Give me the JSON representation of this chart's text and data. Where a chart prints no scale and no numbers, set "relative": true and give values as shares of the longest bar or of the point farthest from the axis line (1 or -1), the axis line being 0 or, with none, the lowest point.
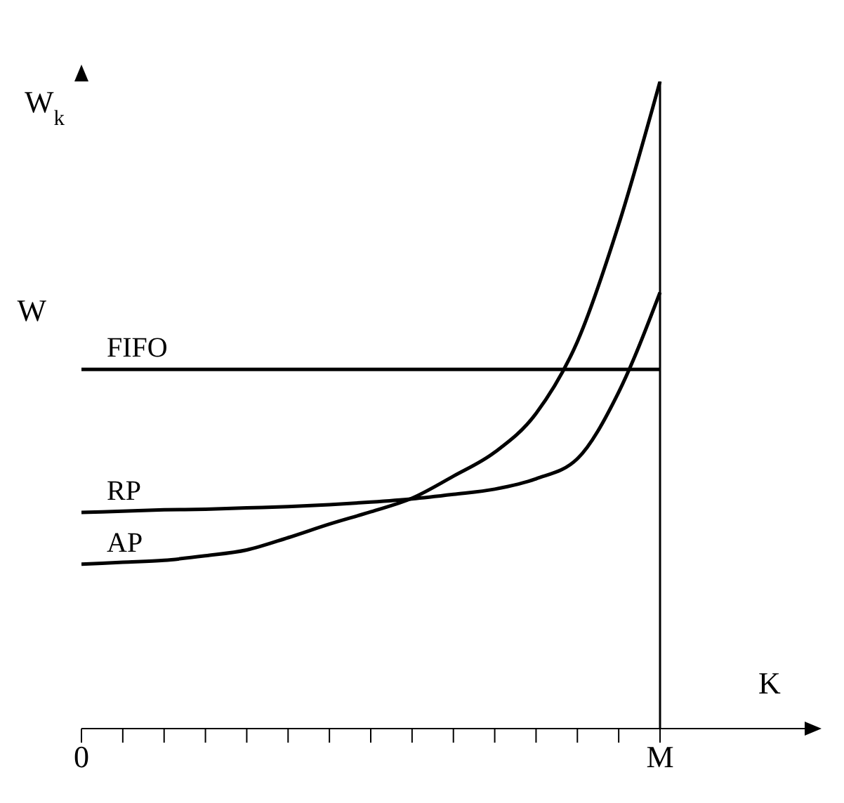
{
  "chart_data": {
    "type": "line",
    "relative": true,
    "ylabel": "W$_{k}$",
    "xlabel": "K",
    "legend": false,
    "grid": false,
    "categories": [
      "0",
      null,
      null,
      null,
      null,
      null,
      null,
      null,
      null,
      null,
      null,
      null,
      null,
      null,
      "M"
    ],
    "ref_lines": [
      {
        "axis": "x",
        "value": "M",
        "color": "#000000"
      }
    ],
    "annotations": [
      "W"
    ],
    "series": [
      {
        "name": "FIFO",
        "color": "#000000",
        "values": [
          0.555,
          0.555,
          0.555,
          0.555,
          0.555,
          0.555,
          0.555,
          0.555,
          0.555,
          0.555,
          0.555,
          0.555,
          0.555,
          0.555,
          0.555
        ]
      },
      {
        "name": "RP",
        "color": "#000000",
        "values": [
          0.334,
          0.336,
          0.338,
          0.339,
          0.341,
          0.343,
          0.346,
          0.35,
          0.355,
          0.362,
          0.37,
          0.386,
          0.417,
          0.52,
          0.674
        ]
      },
      {
        "name": "AP",
        "color": "#000000",
        "values": [
          0.254,
          0.257,
          0.26,
          0.267,
          0.276,
          0.295,
          0.316,
          0.335,
          0.356,
          0.39,
          0.427,
          0.487,
          0.598,
          0.779,
          1
        ]
      }
    ]
  }
}
